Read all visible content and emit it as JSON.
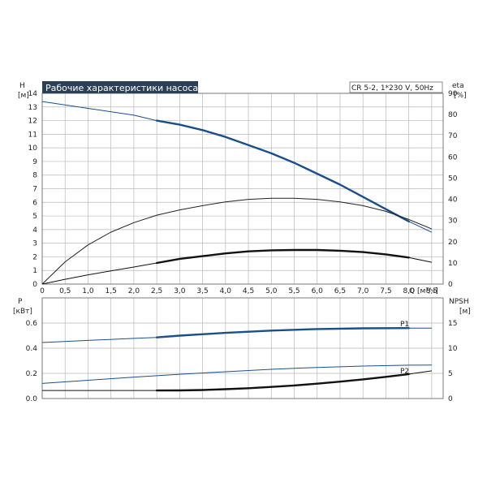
{
  "chart_data": [
    {
      "type": "line",
      "title": "Рабочие характеристики насоса",
      "subtitle": "CR 5-2, 1*230 V, 50Hz",
      "xlabel": "Q [м³/ч]",
      "ylabel": "H [м]",
      "ylabel_right": "eta [%]",
      "xlim": [
        0,
        8.75
      ],
      "ylim": [
        0,
        14
      ],
      "ylim_right": [
        0,
        90
      ],
      "x_ticks": [
        "0",
        "0,5",
        "1,0",
        "1,5",
        "2,0",
        "2,5",
        "3,0",
        "3,5",
        "4,0",
        "4,5",
        "5,0",
        "5,5",
        "6,0",
        "6,5",
        "7,0",
        "7,5",
        "8,0",
        "8,5"
      ],
      "y_ticks": [
        "0",
        "1",
        "2",
        "3",
        "4",
        "5",
        "6",
        "7",
        "8",
        "9",
        "10",
        "11",
        "12",
        "13",
        "14"
      ],
      "y_ticks_right": [
        "0",
        "10",
        "20",
        "30",
        "40",
        "50",
        "60",
        "70",
        "80",
        "90"
      ],
      "grid": true,
      "series": [
        {
          "axis": "left",
          "color": "#1b4f8a",
          "x": [
            0,
            1,
            2,
            2.5,
            3,
            3.5,
            4,
            4.5,
            5,
            5.5,
            6,
            6.5,
            7,
            7.5,
            8,
            8.5
          ],
          "y": [
            13.4,
            12.9,
            12.4,
            12.0,
            11.7,
            11.3,
            10.8,
            10.2,
            9.6,
            8.9,
            8.1,
            7.3,
            6.4,
            5.5,
            4.6,
            3.8
          ],
          "bold_from": 2.45,
          "bold_to": 8.45
        },
        {
          "axis": "right",
          "color": "#222222",
          "x": [
            0,
            0.5,
            1,
            1.5,
            2,
            2.5,
            3,
            3.5,
            4,
            4.5,
            5,
            5.5,
            6,
            6.5,
            7,
            7.5,
            8,
            8.5
          ],
          "y": [
            0,
            10.5,
            18.5,
            24.5,
            29,
            32.5,
            35,
            37,
            38.8,
            40,
            40.5,
            40.5,
            40,
            38.8,
            37,
            34.3,
            30.5,
            26
          ],
          "bold_from": 99,
          "bold_to": 99
        },
        {
          "axis": "left",
          "color": "#111111",
          "x": [
            0,
            0.5,
            1,
            1.5,
            2,
            2.5,
            3,
            3.5,
            4,
            4.5,
            5,
            5.5,
            6,
            6.5,
            7,
            7.5,
            8,
            8.5
          ],
          "y": [
            0,
            0.35,
            0.68,
            0.97,
            1.25,
            1.55,
            1.85,
            2.05,
            2.25,
            2.4,
            2.48,
            2.5,
            2.5,
            2.45,
            2.35,
            2.18,
            1.95,
            1.6
          ],
          "bold_from": 2.45,
          "bold_to": 8.45
        }
      ]
    },
    {
      "type": "line",
      "xlabel": "",
      "ylabel": "P [кВт]",
      "ylabel_right": "NPSH [м]",
      "xlim": [
        0,
        8.75
      ],
      "ylim": [
        0,
        0.8
      ],
      "ylim_right": [
        0,
        20
      ],
      "y_ticks": [
        "0.0",
        "0.2",
        "0.4",
        "0.6"
      ],
      "y_ticks_right": [
        "0",
        "5",
        "10",
        "15"
      ],
      "grid": true,
      "series": [
        {
          "name": "P1",
          "axis": "left",
          "color": "#1b4f8a",
          "x": [
            0,
            1,
            2,
            2.5,
            3,
            4,
            5,
            6,
            7,
            8,
            8.5
          ],
          "y": [
            0.445,
            0.462,
            0.478,
            0.486,
            0.5,
            0.522,
            0.54,
            0.552,
            0.558,
            0.56,
            0.56
          ],
          "bold_from": 2.45,
          "bold_to": 8.45
        },
        {
          "name": "P2",
          "axis": "left",
          "color": "#1b4f8a",
          "x": [
            0,
            1,
            2,
            3,
            4,
            5,
            6,
            7,
            8,
            8.5
          ],
          "y": [
            0.12,
            0.145,
            0.17,
            0.193,
            0.213,
            0.232,
            0.247,
            0.258,
            0.265,
            0.266
          ],
          "bold_from": 99,
          "bold_to": 99
        },
        {
          "axis": "right",
          "color": "#111111",
          "x": [
            0,
            1,
            2,
            2.5,
            3,
            3.5,
            4,
            4.5,
            5,
            5.5,
            6,
            6.5,
            7,
            7.5,
            8,
            8.5
          ],
          "y": [
            1.6,
            1.6,
            1.6,
            1.6,
            1.62,
            1.7,
            1.85,
            2.05,
            2.3,
            2.6,
            2.95,
            3.35,
            3.8,
            4.3,
            4.85,
            5.5
          ],
          "bold_from": 2.45,
          "bold_to": 8.45
        }
      ]
    }
  ]
}
